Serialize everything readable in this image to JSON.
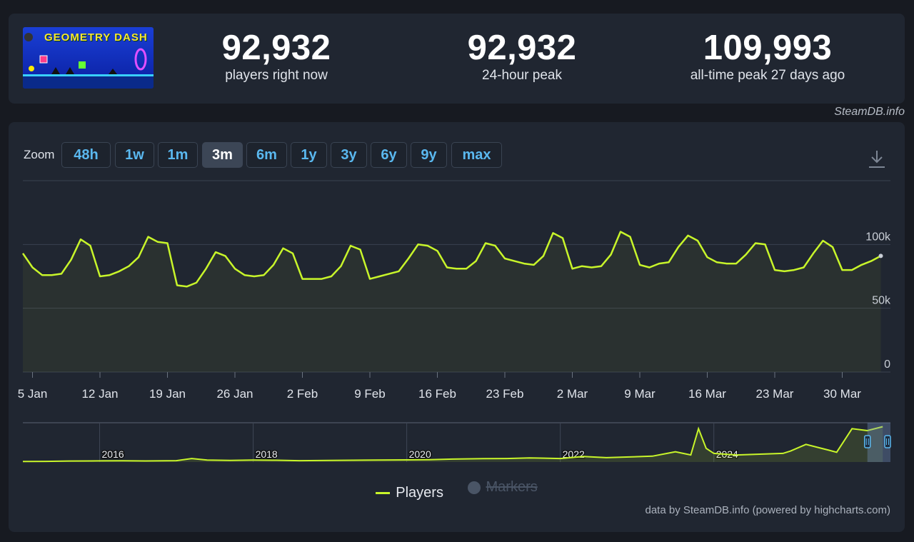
{
  "stats": {
    "current": {
      "value": "92,932",
      "label": "players right now"
    },
    "peak24": {
      "value": "92,932",
      "label": "24-hour peak"
    },
    "alltime": {
      "value": "109,993",
      "label": "all-time peak 27 days ago"
    }
  },
  "game_logo_text": "GEOMETRY DASH",
  "credit_top": "SteamDB.info",
  "zoom": {
    "label": "Zoom",
    "buttons": [
      "48h",
      "1w",
      "1m",
      "3m",
      "6m",
      "1y",
      "3y",
      "6y",
      "9y",
      "max"
    ],
    "active": "3m"
  },
  "legend": {
    "players": "Players",
    "markers": "Markers"
  },
  "credit_bottom": "data by SteamDB.info (powered by highcharts.com)",
  "colors": {
    "series": "#c8f52a",
    "accent": "#5ab8ef",
    "panel": "#202631",
    "background": "#171a21"
  },
  "icons": {
    "download": "download-icon"
  },
  "chart_data": {
    "type": "line",
    "title": "",
    "xlabel": "",
    "ylabel": "",
    "ylim": [
      0,
      100000
    ],
    "y_ticks": [
      {
        "value": 0,
        "label": "0"
      },
      {
        "value": 50000,
        "label": "50k"
      },
      {
        "value": 100000,
        "label": "100k"
      }
    ],
    "x_ticks": [
      {
        "day": 4,
        "label": "5 Jan"
      },
      {
        "day": 11,
        "label": "12 Jan"
      },
      {
        "day": 18,
        "label": "19 Jan"
      },
      {
        "day": 25,
        "label": "26 Jan"
      },
      {
        "day": 32,
        "label": "2 Feb"
      },
      {
        "day": 39,
        "label": "9 Feb"
      },
      {
        "day": 46,
        "label": "16 Feb"
      },
      {
        "day": 53,
        "label": "23 Feb"
      },
      {
        "day": 60,
        "label": "2 Mar"
      },
      {
        "day": 67,
        "label": "9 Mar"
      },
      {
        "day": 74,
        "label": "16 Mar"
      },
      {
        "day": 81,
        "label": "23 Mar"
      },
      {
        "day": 88,
        "label": "30 Mar"
      }
    ],
    "series": [
      {
        "name": "Players",
        "x": [
          3,
          4,
          5,
          6,
          7,
          8,
          9,
          10,
          11,
          12,
          13,
          14,
          15,
          16,
          17,
          18,
          19,
          20,
          21,
          22,
          23,
          24,
          25,
          26,
          27,
          28,
          29,
          30,
          31,
          32,
          33,
          34,
          35,
          36,
          37,
          38,
          39,
          40,
          41,
          42,
          43,
          44,
          45,
          46,
          47,
          48,
          49,
          50,
          51,
          52,
          53,
          54,
          55,
          56,
          57,
          58,
          59,
          60,
          61,
          62,
          63,
          64,
          65,
          66,
          67,
          68,
          69,
          70,
          71,
          72,
          73,
          74,
          75,
          76,
          77,
          78,
          79,
          80,
          81,
          82,
          83,
          84,
          85,
          86,
          87,
          88,
          89,
          90,
          91,
          92
        ],
        "y": [
          93000,
          82000,
          76000,
          76000,
          77000,
          88000,
          104000,
          99000,
          75000,
          76000,
          79000,
          83000,
          90000,
          106000,
          102000,
          101000,
          68000,
          67000,
          70000,
          81000,
          94000,
          91000,
          81000,
          76000,
          75000,
          76000,
          84000,
          97000,
          93000,
          73000,
          73000,
          73000,
          75000,
          83000,
          99000,
          96000,
          73000,
          75000,
          77000,
          79000,
          89000,
          100000,
          99000,
          95000,
          82000,
          81000,
          81000,
          87000,
          101000,
          99000,
          89000,
          87000,
          85000,
          84000,
          91000,
          109000,
          105000,
          81000,
          83000,
          82000,
          83000,
          92000,
          110000,
          106000,
          84000,
          82000,
          85000,
          86000,
          98000,
          107000,
          103000,
          90000,
          86000,
          85000,
          85000,
          92000,
          101000,
          100000,
          80000,
          79000,
          80000,
          82000,
          93000,
          103000,
          98000,
          80000,
          80000,
          84000,
          87000,
          91000
        ]
      }
    ],
    "navigator": {
      "year_labels": [
        "2016",
        "2018",
        "2020",
        "2022",
        "2024"
      ],
      "x": [
        2015.0,
        2015.3,
        2015.6,
        2016.0,
        2016.3,
        2016.6,
        2017.0,
        2017.2,
        2017.4,
        2017.7,
        2018.0,
        2018.3,
        2018.6,
        2019.0,
        2019.3,
        2019.6,
        2020.0,
        2020.3,
        2020.6,
        2021.0,
        2021.3,
        2021.6,
        2022.0,
        2022.3,
        2022.6,
        2022.9,
        2023.2,
        2023.5,
        2023.7,
        2023.8,
        2023.9,
        2024.0,
        2024.3,
        2024.6,
        2024.9,
        2025.0,
        2025.2,
        2025.5,
        2025.6,
        2025.8,
        2026.0,
        2026.2
      ],
      "y": [
        1500,
        1600,
        2500,
        3000,
        3200,
        2800,
        3500,
        9000,
        5000,
        4000,
        5000,
        4500,
        3500,
        4000,
        4500,
        5000,
        5500,
        6000,
        7500,
        8500,
        9000,
        10500,
        9000,
        14000,
        11000,
        13000,
        15000,
        26000,
        18000,
        85000,
        35000,
        22000,
        18000,
        20000,
        22000,
        28000,
        45000,
        30000,
        25000,
        85000,
        80000,
        90000
      ]
    }
  }
}
